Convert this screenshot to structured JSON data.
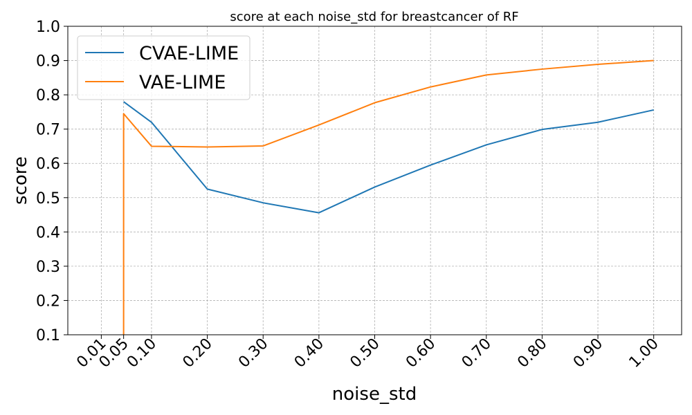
{
  "chart_data": {
    "type": "line",
    "title": "score at each noise_std for breastcancer of RF",
    "xlabel": "noise_std",
    "ylabel": "score",
    "x_ticks": [
      "0.01",
      "0.05",
      "0.10",
      "0.20",
      "0.30",
      "0.40",
      "0.50",
      "0.60",
      "0.70",
      "0.80",
      "0.90",
      "1.00"
    ],
    "y_ticks": [
      "0.1",
      "0.2",
      "0.3",
      "0.4",
      "0.5",
      "0.6",
      "0.7",
      "0.8",
      "0.9",
      "1.0"
    ],
    "xlim": [
      -0.05,
      1.05
    ],
    "ylim": [
      0.1,
      1.0
    ],
    "grid": true,
    "legend_position": "top-left",
    "series": [
      {
        "name": "CVAE-LIME",
        "color": "#1f77b4",
        "x": [
          0.05,
          0.1,
          0.2,
          0.3,
          0.4,
          0.5,
          0.6,
          0.7,
          0.8,
          0.9,
          1.0
        ],
        "y": [
          0.78,
          0.72,
          0.525,
          0.485,
          0.456,
          0.531,
          0.595,
          0.654,
          0.699,
          0.72,
          0.756
        ]
      },
      {
        "name": "VAE-LIME",
        "color": "#ff7f0e",
        "x": [
          0.05,
          0.05,
          0.1,
          0.2,
          0.3,
          0.4,
          0.5,
          0.6,
          0.7,
          0.8,
          0.9,
          1.0
        ],
        "y": [
          0.1,
          0.745,
          0.65,
          0.648,
          0.651,
          0.712,
          0.777,
          0.823,
          0.858,
          0.875,
          0.889,
          0.9
        ]
      }
    ]
  }
}
